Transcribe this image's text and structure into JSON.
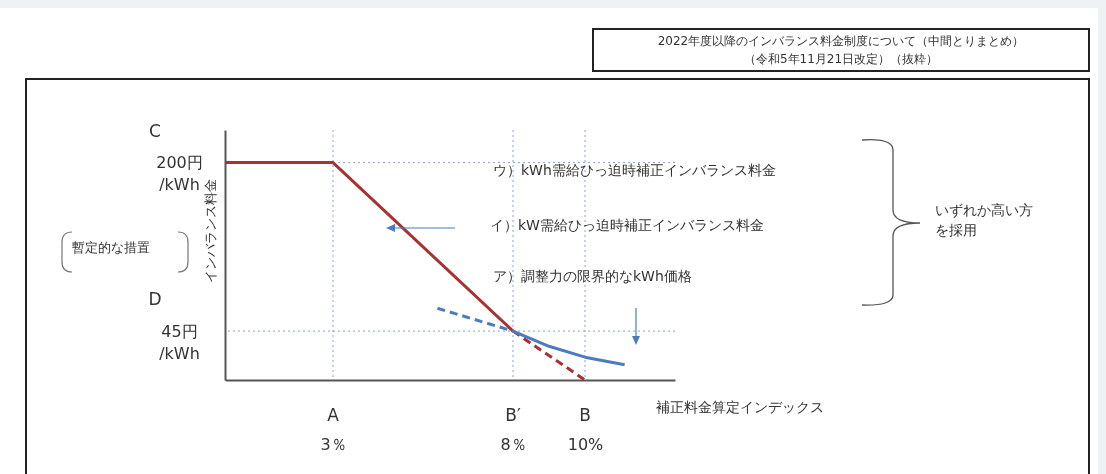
{
  "chart_data": {
    "type": "line",
    "title": "2022年度以降のインバランス料金制度について（中間とりまとめ）",
    "subtitle": "（令和5年11月21日改定）（抜粋）",
    "xlabel": "補正料金算定インデックス",
    "ylabel": "インバランス料金",
    "xlim": [
      0,
      12.5
    ],
    "ylim": [
      0,
      230
    ],
    "xticks": [
      {
        "value": 3,
        "label": "3％"
      },
      {
        "value": 8,
        "label": "8％"
      },
      {
        "value": 10,
        "label": "10%"
      }
    ],
    "yticks": [
      {
        "value": 45,
        "label": "45円\n/kWh"
      },
      {
        "value": 200,
        "label": "200円\n/kWh"
      }
    ],
    "series": [
      {
        "color": "#a83232",
        "x": [
          0,
          3,
          8
        ],
        "values": [
          200,
          200,
          45
        ],
        "line_style": "solid"
      },
      {
        "color": "#a83232",
        "x": [
          8,
          10
        ],
        "values": [
          45,
          0
        ],
        "line_style": "dashed"
      },
      {
        "color": "#4a7cc0",
        "x": [
          5.9,
          8
        ],
        "values": [
          66,
          45
        ],
        "line_style": "dashed"
      },
      {
        "color": "#4a7cc0",
        "x": [
          8,
          9,
          10,
          11.1
        ],
        "values": [
          45,
          31,
          21,
          14
        ],
        "line_style": "solid"
      }
    ],
    "ref_lines": [
      {
        "axis": "x",
        "value": 3,
        "color": "#7fa6d8",
        "line_style": "dotted"
      },
      {
        "axis": "x",
        "value": 8,
        "color": "#7fa6d8",
        "line_style": "dotted"
      },
      {
        "axis": "x",
        "value": 10,
        "color": "#7fa6d8",
        "line_style": "dotted"
      },
      {
        "axis": "y",
        "value": 200,
        "color": "#7fa6d8",
        "line_style": "dotted"
      },
      {
        "axis": "y",
        "value": 45,
        "color": "#7fa6d8",
        "line_style": "dotted"
      }
    ],
    "annotations": [
      "ウ）kWh需給ひっ迫時補正インバランス料金",
      "イ）kW需給ひっ迫時補正インバランス料金",
      "ア）調整力の限界的なkWh価格",
      "いずれか高い方を採用",
      "暫定的な措置",
      "A",
      "B′",
      "B",
      "C",
      "D"
    ],
    "grid": false,
    "marker": "none"
  }
}
